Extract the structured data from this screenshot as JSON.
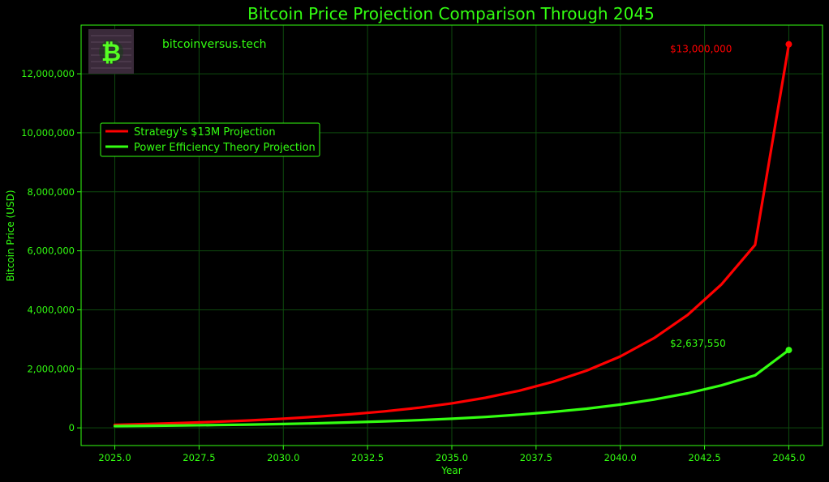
{
  "chart_data": {
    "type": "line",
    "title": "Bitcoin Price Projection Comparison Through 2045",
    "xlabel": "Year",
    "ylabel": "Bitcoin Price (USD)",
    "xlim": [
      2024.0,
      2046.0
    ],
    "ylim": [
      -600000,
      13650000
    ],
    "x_ticks": [
      2025.0,
      2027.5,
      2030.0,
      2032.5,
      2035.0,
      2037.5,
      2040.0,
      2042.5,
      2045.0
    ],
    "x_tick_labels": [
      "2025.0",
      "2027.5",
      "2030.0",
      "2032.5",
      "2035.0",
      "2037.5",
      "2040.0",
      "2042.5",
      "2045.0"
    ],
    "y_ticks": [
      0,
      2000000,
      4000000,
      6000000,
      8000000,
      10000000,
      12000000
    ],
    "y_tick_labels": [
      "0",
      "2,000,000",
      "4,000,000",
      "6,000,000",
      "8,000,000",
      "10,000,000",
      "12,000,000"
    ],
    "grid": true,
    "legend_position": "upper-left",
    "watermark": "bitcoinversus.tech",
    "x": [
      2025,
      2026,
      2027,
      2028,
      2029,
      2030,
      2031,
      2032,
      2033,
      2034,
      2035,
      2036,
      2037,
      2038,
      2039,
      2040,
      2041,
      2042,
      2043,
      2044,
      2045
    ],
    "series": [
      {
        "name": "Strategy's $13M Projection",
        "color": "#ff0000",
        "values": [
          100000,
          130000,
          165000,
          205000,
          250000,
          310000,
          380000,
          460000,
          560000,
          680000,
          830000,
          1020000,
          1260000,
          1560000,
          1940000,
          2420000,
          3040000,
          3830000,
          4860000,
          6200000,
          13000000
        ],
        "end_label": "$13,000,000"
      },
      {
        "name": "Power Efficiency Theory Projection",
        "color": "#33ff11",
        "values": [
          60000,
          70000,
          80000,
          95000,
          110000,
          130000,
          155000,
          185000,
          220000,
          260000,
          310000,
          370000,
          450000,
          540000,
          650000,
          790000,
          960000,
          1170000,
          1440000,
          1780000,
          2637550
        ],
        "end_label": "$2,637,550"
      }
    ],
    "colors": {
      "background": "#000000",
      "text": "#33ff11",
      "grid": "#0e4a0e",
      "frame": "#33ff11",
      "logo_bg": "#3a2a3a"
    }
  }
}
